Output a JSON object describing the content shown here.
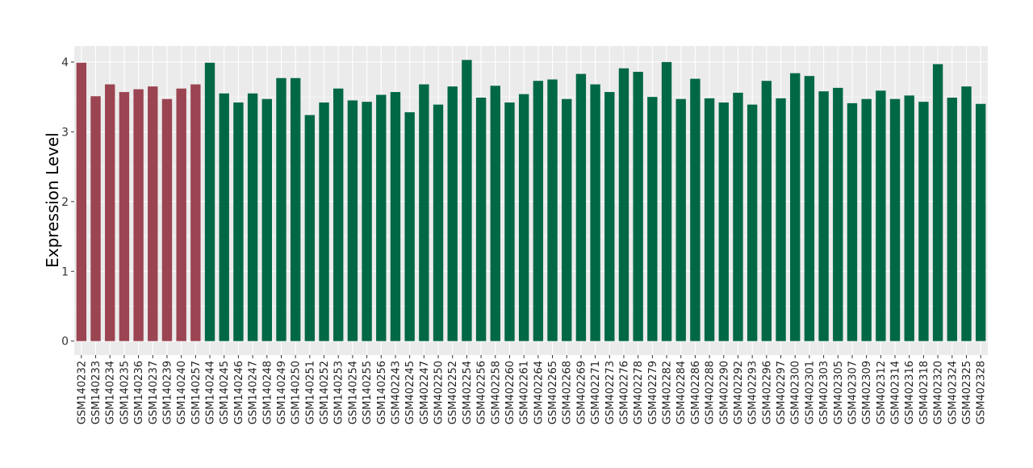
{
  "chart_data": {
    "type": "bar",
    "title": "",
    "xlabel": "",
    "ylabel": "Expression Level",
    "ylim": [
      -0.2,
      4.23
    ],
    "yticks": [
      0,
      1,
      2,
      3,
      4
    ],
    "grid": true,
    "legend": "none",
    "colors": {
      "group1": "#9b4452",
      "group2": "#006845",
      "panel": "#ebebeb",
      "grid": "#ffffff"
    },
    "categories": [
      "GSM140232",
      "GSM140233",
      "GSM140234",
      "GSM140235",
      "GSM140236",
      "GSM140237",
      "GSM140239",
      "GSM140240",
      "GSM140257",
      "GSM140244",
      "GSM140245",
      "GSM140246",
      "GSM140247",
      "GSM140248",
      "GSM140249",
      "GSM140250",
      "GSM140251",
      "GSM140252",
      "GSM140253",
      "GSM140254",
      "GSM140255",
      "GSM140256",
      "GSM402243",
      "GSM402245",
      "GSM402247",
      "GSM402250",
      "GSM402252",
      "GSM402254",
      "GSM402256",
      "GSM402258",
      "GSM402260",
      "GSM402261",
      "GSM402264",
      "GSM402265",
      "GSM402268",
      "GSM402269",
      "GSM402271",
      "GSM402273",
      "GSM402276",
      "GSM402278",
      "GSM402279",
      "GSM402282",
      "GSM402284",
      "GSM402286",
      "GSM402288",
      "GSM402290",
      "GSM402292",
      "GSM402293",
      "GSM402296",
      "GSM402297",
      "GSM402300",
      "GSM402301",
      "GSM402303",
      "GSM402305",
      "GSM402307",
      "GSM402309",
      "GSM402312",
      "GSM402314",
      "GSM402316",
      "GSM402318",
      "GSM402320",
      "GSM402324",
      "GSM402325",
      "GSM402328"
    ],
    "values": [
      3.99,
      3.51,
      3.68,
      3.57,
      3.61,
      3.65,
      3.47,
      3.62,
      3.68,
      3.99,
      3.55,
      3.42,
      3.55,
      3.47,
      3.77,
      3.77,
      3.24,
      3.42,
      3.62,
      3.45,
      3.43,
      3.53,
      3.57,
      3.28,
      3.68,
      3.39,
      3.65,
      4.03,
      3.49,
      3.66,
      3.42,
      3.54,
      3.73,
      3.75,
      3.47,
      3.83,
      3.68,
      3.57,
      3.91,
      3.86,
      3.5,
      4.0,
      3.47,
      3.76,
      3.48,
      3.42,
      3.56,
      3.39,
      3.73,
      3.48,
      3.84,
      3.8,
      3.58,
      3.63,
      3.41,
      3.47,
      3.59,
      3.47,
      3.52,
      3.43,
      3.97,
      3.49,
      3.65,
      3.4
    ],
    "groups": [
      1,
      1,
      1,
      1,
      1,
      1,
      1,
      1,
      1,
      2,
      2,
      2,
      2,
      2,
      2,
      2,
      2,
      2,
      2,
      2,
      2,
      2,
      2,
      2,
      2,
      2,
      2,
      2,
      2,
      2,
      2,
      2,
      2,
      2,
      2,
      2,
      2,
      2,
      2,
      2,
      2,
      2,
      2,
      2,
      2,
      2,
      2,
      2,
      2,
      2,
      2,
      2,
      2,
      2,
      2,
      2,
      2,
      2,
      2,
      2,
      2,
      2,
      2,
      2
    ]
  }
}
